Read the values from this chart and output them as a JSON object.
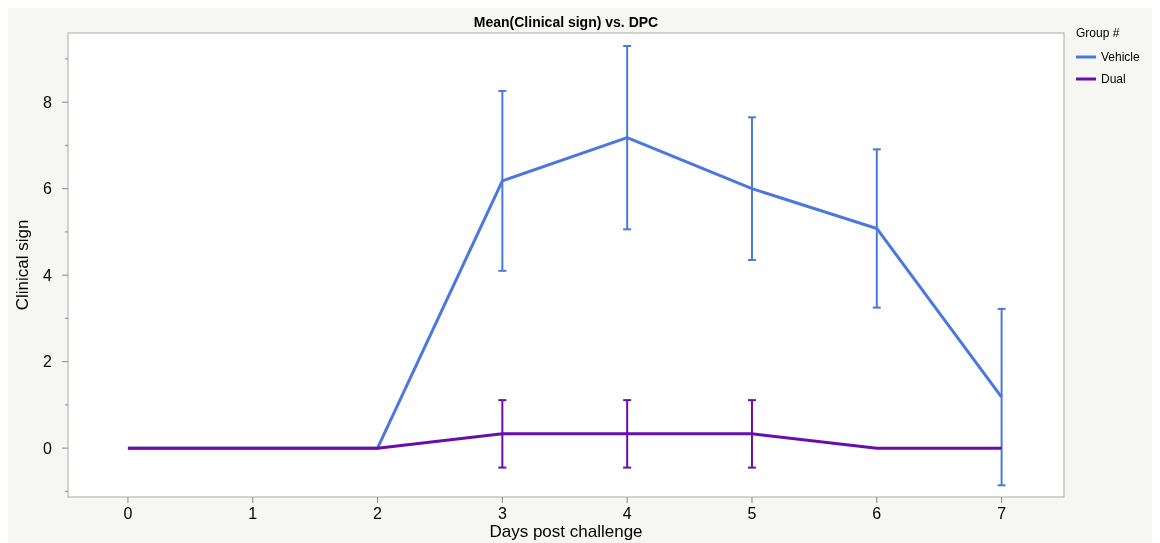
{
  "chart_data": {
    "type": "line",
    "title": "Mean(Clinical sign) vs. DPC",
    "xlabel": "Days post challenge",
    "ylabel": "Clinical sign",
    "legend_title": "Group #",
    "legend": "right",
    "x": [
      0,
      1,
      2,
      3,
      4,
      5,
      6,
      7
    ],
    "xlim": [
      -0.48,
      7.5
    ],
    "xticks": [
      0,
      1,
      2,
      3,
      4,
      5,
      6,
      7
    ],
    "ylim": [
      -1.13,
      9.6
    ],
    "yticks": [
      {
        "value": -1,
        "label": null
      },
      0,
      {
        "value": 1,
        "label": null
      },
      2,
      {
        "value": 3,
        "label": null
      },
      4,
      {
        "value": 5,
        "label": null
      },
      6,
      {
        "value": 7,
        "label": null
      },
      8,
      {
        "value": 9,
        "label": null
      }
    ],
    "grid": false,
    "marker": "none",
    "line_style": "solid",
    "series": [
      {
        "name": "Vehicle",
        "color": "#4a78e0",
        "values": [
          0,
          0,
          0,
          6.18,
          7.18,
          6.0,
          5.08,
          1.18
        ],
        "errors": [
          null,
          null,
          null,
          2.08,
          2.12,
          1.65,
          1.83,
          2.04
        ]
      },
      {
        "name": "Dual",
        "color": "#6a0dad",
        "values": [
          0,
          0,
          0,
          0.33,
          0.33,
          0.33,
          0,
          0
        ],
        "errors": [
          null,
          null,
          null,
          0.78,
          0.78,
          0.78,
          null,
          null
        ]
      }
    ]
  }
}
